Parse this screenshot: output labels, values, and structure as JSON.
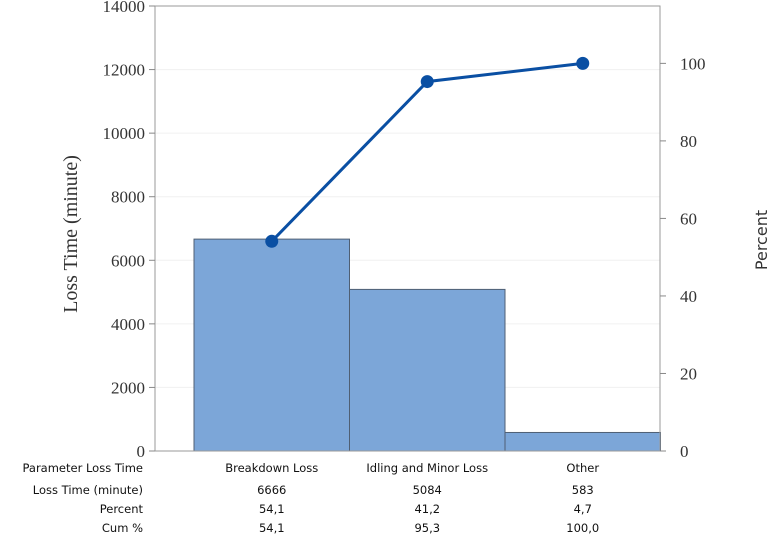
{
  "chart_data": {
    "type": "bar",
    "subtype": "pareto",
    "categories": [
      "Breakdown Loss",
      "Idling and Minor Loss",
      "Other"
    ],
    "series": [
      {
        "values": [
          6666,
          5084,
          583
        ]
      },
      {
        "values": [
          54.1,
          95.3,
          100.0
        ]
      }
    ],
    "ylabel": "Loss Time (minute)",
    "y2label": "Percent",
    "ylim": [
      0,
      14000
    ],
    "y2lim": [
      0,
      114.8
    ],
    "yticks": [
      "0",
      "2000",
      "4000",
      "6000",
      "8000",
      "10000",
      "12000",
      "14000"
    ],
    "y2ticks": [
      "0",
      "20",
      "40",
      "60",
      "80",
      "100"
    ],
    "grid": true,
    "legend": "none",
    "colors": {
      "bar": "#7ca6d8",
      "bar_edge": "#4f5f73",
      "line": "#0a4fa3"
    }
  },
  "table": {
    "header_label": "Parameter Loss Time",
    "rows": [
      {
        "label": "Loss Time (minute)",
        "values": [
          "6666",
          "5084",
          "583"
        ]
      },
      {
        "label": "Percent",
        "values": [
          "54,1",
          "41,2",
          "4,7"
        ]
      },
      {
        "label": "Cum %",
        "values": [
          "54,1",
          "95,3",
          "100,0"
        ]
      }
    ]
  }
}
